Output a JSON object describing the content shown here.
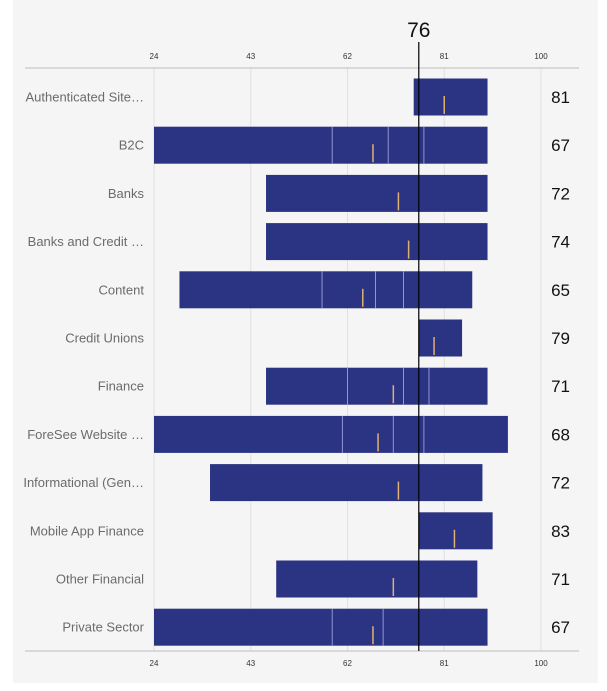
{
  "chart_data": {
    "type": "bar",
    "subtype": "range-bullet",
    "x_ticks": [
      24,
      43,
      62,
      81,
      100
    ],
    "xlim": [
      24,
      100
    ],
    "reference": {
      "value": 76,
      "label": "76"
    },
    "grid": true,
    "colors": {
      "bar": "#2b3383",
      "band_line": "#8e96d4",
      "marker": "#e0b070",
      "reference_line": "#000000",
      "background": "#f5f5f5",
      "grid": "#e0e0e0",
      "axis": "#bdbdbd"
    },
    "rows": [
      {
        "label": "Authenticated Site…",
        "score": 81,
        "range": [
          75,
          89.5
        ],
        "bands": [],
        "marker": 81
      },
      {
        "label": "B2C",
        "score": 67,
        "range": [
          24,
          89.5
        ],
        "bands": [
          59,
          70,
          77
        ],
        "marker": 67
      },
      {
        "label": "Banks",
        "score": 72,
        "range": [
          46,
          89.5
        ],
        "bands": [],
        "marker": 72
      },
      {
        "label": "Banks and Credit …",
        "score": 74,
        "range": [
          46,
          89.5
        ],
        "bands": [],
        "marker": 74
      },
      {
        "label": "Content",
        "score": 65,
        "range": [
          29,
          86.5
        ],
        "bands": [
          57,
          67.5,
          73
        ],
        "marker": 65
      },
      {
        "label": "Credit Unions",
        "score": 79,
        "range": [
          76,
          84.5
        ],
        "bands": [],
        "marker": 79
      },
      {
        "label": "Finance",
        "score": 71,
        "range": [
          46,
          89.5
        ],
        "bands": [
          62,
          73,
          78
        ],
        "marker": 71
      },
      {
        "label": "ForeSee Website …",
        "score": 68,
        "range": [
          24,
          93.5
        ],
        "bands": [
          61,
          71,
          77
        ],
        "marker": 68
      },
      {
        "label": "Informational (Gen…",
        "score": 72,
        "range": [
          35,
          88.5
        ],
        "bands": [],
        "marker": 72
      },
      {
        "label": "Mobile App Finance",
        "score": 83,
        "range": [
          76,
          90.5
        ],
        "bands": [],
        "marker": 83
      },
      {
        "label": "Other Financial",
        "score": 71,
        "range": [
          48,
          87.5
        ],
        "bands": [],
        "marker": 71
      },
      {
        "label": "Private Sector",
        "score": 67,
        "range": [
          24,
          89.5
        ],
        "bands": [
          59,
          69
        ],
        "marker": 67
      }
    ]
  }
}
